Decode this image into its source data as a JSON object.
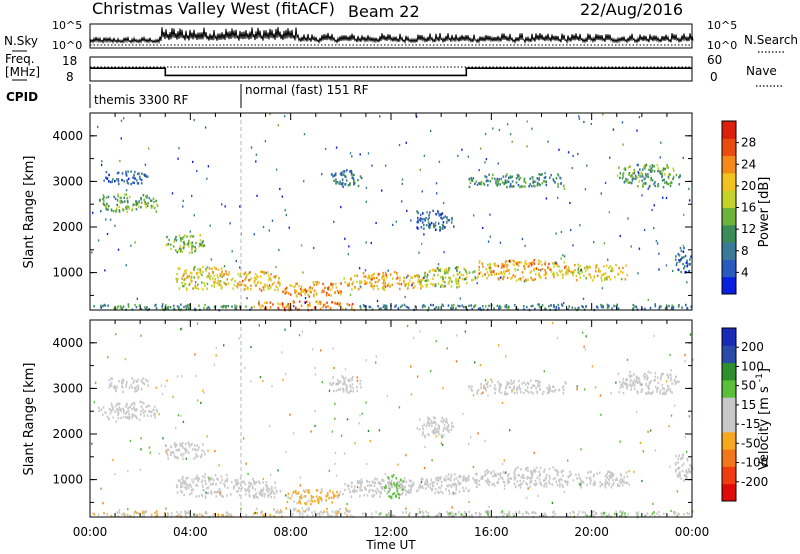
{
  "header": {
    "station": "Christmas Valley West (fitACF)",
    "beam": "Beam 22",
    "date": "22/Aug/2016"
  },
  "strip": {
    "nsky_label": "N.Sky",
    "nsky_ticks": [
      "10^5",
      "10^0"
    ],
    "nsearch_label": "N.Search",
    "nsearch_ticks": [
      "10^5",
      "10^0"
    ],
    "freq_label_1": "Freq.",
    "freq_label_2": "[MHz]",
    "freq_ticks": [
      "18",
      "8"
    ],
    "nave_label": "Nave",
    "nave_ticks": [
      "60",
      "0"
    ],
    "cpid_label": "CPID",
    "cpid_modes": [
      {
        "name": "themis 3300 RF",
        "start_hour": 0
      },
      {
        "name": "normal (fast) 151 RF",
        "start_hour": 6
      }
    ],
    "freq_segments": [
      {
        "from_hour": 0,
        "to_hour": 3,
        "value": 14
      },
      {
        "from_hour": 3,
        "to_hour": 15,
        "value": 10
      },
      {
        "from_hour": 15,
        "to_hour": 24,
        "value": 14
      }
    ]
  },
  "chart_data": [
    {
      "type": "heatmap",
      "panel": "power",
      "ylabel": "Slant Range [km]",
      "yticks": [
        "4000",
        "3000",
        "2000",
        "1000"
      ],
      "ylim": [
        180,
        4500
      ],
      "xlim_hours": [
        0,
        24
      ],
      "colorbar": {
        "label": "Power [dB]",
        "ticks": [
          "28",
          "24",
          "20",
          "16",
          "12",
          "8",
          "4"
        ],
        "range": [
          0,
          30
        ],
        "colors": [
          "#0a1ee0",
          "#2a5abf",
          "#3a7a98",
          "#3c8c5a",
          "#6db33a",
          "#c4d22a",
          "#f2c21e",
          "#f48a18",
          "#ea4c10",
          "#dc1f0a"
        ]
      },
      "regions": [
        {
          "t0": 0.3,
          "t1": 2.7,
          "r0": 2350,
          "r1": 2750,
          "value": 12
        },
        {
          "t0": 0.6,
          "t1": 2.3,
          "r0": 2950,
          "r1": 3250,
          "value": 6
        },
        {
          "t0": 3.0,
          "t1": 4.6,
          "r0": 1450,
          "r1": 1850,
          "value": 14
        },
        {
          "t0": 3.4,
          "t1": 5.6,
          "r0": 650,
          "r1": 1150,
          "value": 18
        },
        {
          "t0": 5.6,
          "t1": 7.6,
          "r0": 620,
          "r1": 1050,
          "value": 20
        },
        {
          "t0": 7.6,
          "t1": 10.0,
          "r0": 480,
          "r1": 820,
          "value": 22
        },
        {
          "t0": 10.0,
          "t1": 13.3,
          "r0": 650,
          "r1": 1050,
          "value": 20
        },
        {
          "t0": 13.0,
          "t1": 15.5,
          "r0": 700,
          "r1": 1150,
          "value": 16
        },
        {
          "t0": 15.3,
          "t1": 19.2,
          "r0": 850,
          "r1": 1300,
          "value": 20
        },
        {
          "t0": 19.2,
          "t1": 21.5,
          "r0": 850,
          "r1": 1200,
          "value": 18
        },
        {
          "t0": 21.0,
          "t1": 23.5,
          "r0": 2900,
          "r1": 3400,
          "value": 12
        },
        {
          "t0": 15.0,
          "t1": 19.0,
          "r0": 2900,
          "r1": 3200,
          "value": 10
        },
        {
          "t0": 13.0,
          "t1": 14.5,
          "r0": 1950,
          "r1": 2400,
          "value": 6
        },
        {
          "t0": 6.5,
          "t1": 10.5,
          "r0": 200,
          "r1": 400,
          "value": 24
        },
        {
          "t0": 0.0,
          "t1": 6.5,
          "r0": 200,
          "r1": 330,
          "value": 10
        },
        {
          "t0": 10.5,
          "t1": 24.0,
          "r0": 200,
          "r1": 330,
          "value": 8
        },
        {
          "t0": 23.3,
          "t1": 24.0,
          "r0": 1000,
          "r1": 1600,
          "value": 6
        },
        {
          "t0": 9.5,
          "t1": 10.8,
          "r0": 2900,
          "r1": 3300,
          "value": 8
        }
      ]
    },
    {
      "type": "heatmap",
      "panel": "velocity",
      "ylabel": "Slant Range [km]",
      "yticks": [
        "4000",
        "3000",
        "2000",
        "1000"
      ],
      "ylim": [
        180,
        4500
      ],
      "xlim_hours": [
        0,
        24
      ],
      "colorbar": {
        "label": "Velocity [m s^-1]",
        "ticks": [
          "200",
          "100",
          "50",
          "15",
          "-15",
          "-50",
          "-100",
          "-200"
        ],
        "range": [
          -250,
          250
        ],
        "colors": [
          "#e00a0a",
          "#f03c10",
          "#f4761a",
          "#f7a81f",
          "#c8c8c8",
          "#c8c8c8",
          "#5cbf3a",
          "#2e8f2e",
          "#2a4aa8",
          "#1a2ab8"
        ]
      },
      "regions": [
        {
          "t0": 0.3,
          "t1": 2.7,
          "r0": 2350,
          "r1": 2750,
          "value": 0
        },
        {
          "t0": 0.6,
          "t1": 2.3,
          "r0": 2950,
          "r1": 3250,
          "value": 0
        },
        {
          "t0": 3.0,
          "t1": 4.6,
          "r0": 1450,
          "r1": 1850,
          "value": 0
        },
        {
          "t0": 3.4,
          "t1": 5.6,
          "r0": 650,
          "r1": 1150,
          "value": 0
        },
        {
          "t0": 5.6,
          "t1": 7.6,
          "r0": 620,
          "r1": 1050,
          "value": 0
        },
        {
          "t0": 7.6,
          "t1": 10.0,
          "r0": 480,
          "r1": 820,
          "value": -60
        },
        {
          "t0": 10.0,
          "t1": 13.3,
          "r0": 650,
          "r1": 1050,
          "value": 0
        },
        {
          "t0": 11.7,
          "t1": 12.5,
          "r0": 600,
          "r1": 1150,
          "value": 60
        },
        {
          "t0": 13.0,
          "t1": 15.5,
          "r0": 700,
          "r1": 1150,
          "value": 0
        },
        {
          "t0": 15.3,
          "t1": 19.2,
          "r0": 850,
          "r1": 1300,
          "value": 0
        },
        {
          "t0": 19.2,
          "t1": 21.5,
          "r0": 850,
          "r1": 1200,
          "value": 0
        },
        {
          "t0": 21.0,
          "t1": 23.5,
          "r0": 2900,
          "r1": 3400,
          "value": 0
        },
        {
          "t0": 15.0,
          "t1": 19.0,
          "r0": 2900,
          "r1": 3200,
          "value": 0
        },
        {
          "t0": 13.0,
          "t1": 14.5,
          "r0": 1950,
          "r1": 2400,
          "value": 0
        },
        {
          "t0": 6.5,
          "t1": 10.5,
          "r0": 200,
          "r1": 400,
          "value": -40
        },
        {
          "t0": 0.0,
          "t1": 6.5,
          "r0": 200,
          "r1": 330,
          "value": -40
        },
        {
          "t0": 10.5,
          "t1": 24.0,
          "r0": 200,
          "r1": 330,
          "value": 40
        },
        {
          "t0": 23.3,
          "t1": 24.0,
          "r0": 1000,
          "r1": 1600,
          "value": 0
        },
        {
          "t0": 9.5,
          "t1": 10.8,
          "r0": 2900,
          "r1": 3300,
          "value": 0
        }
      ]
    }
  ],
  "xaxis": {
    "ticks": [
      "00:00",
      "04:00",
      "08:00",
      "12:00",
      "16:00",
      "20:00",
      "00:00"
    ],
    "label": "Time UT"
  }
}
